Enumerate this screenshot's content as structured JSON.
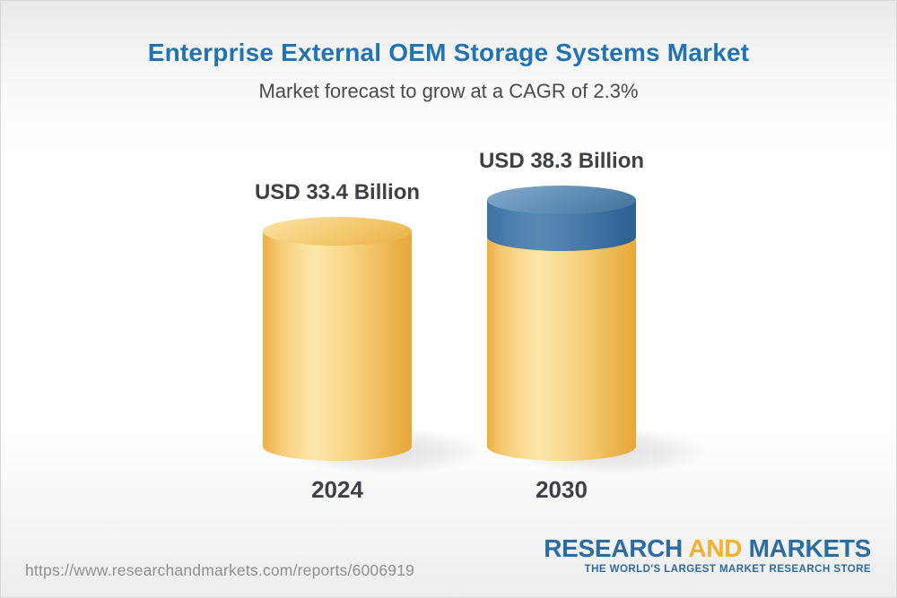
{
  "header": {
    "title": "Enterprise External OEM Storage Systems Market",
    "subtitle": "Market forecast to grow at a CAGR of 2.3%"
  },
  "chart": {
    "bars": [
      {
        "year": "2024",
        "value_label": "USD 33.4 Billion"
      },
      {
        "year": "2030",
        "value_label": "USD 38.3 Billion"
      }
    ]
  },
  "chart_data": {
    "type": "bar",
    "categories": [
      "2024",
      "2030"
    ],
    "values": [
      33.4,
      38.3
    ],
    "unit": "USD Billion",
    "title": "Enterprise External OEM Storage Systems Market",
    "subtitle": "Market forecast to grow at a CAGR of 2.3%",
    "cagr_percent": 2.3,
    "bar_style": "3d-cylinder",
    "annotations": [
      "USD 33.4 Billion",
      "USD 38.3 Billion"
    ],
    "colors": {
      "base_segment": "#f2c364",
      "growth_cap_segment": "#4a7cab"
    },
    "legend_position": "none",
    "grid": false
  },
  "icons": {
    "cylinder_base": "yellow-cylinder",
    "cylinder_growth_cap": "blue-cylinder-cap"
  },
  "footer": {
    "url": "https://www.researchandmarkets.com/reports/6006919",
    "logo": {
      "part1": "RESEARCH",
      "part2": "AND",
      "part3": "MARKETS",
      "tagline": "THE WORLD'S LARGEST MARKET RESEARCH STORE"
    }
  },
  "colors": {
    "title_blue": "#2273b2",
    "subtitle_gray": "#4a4a4a",
    "label_dark": "#3d4147",
    "url_gray": "#8f8f8f",
    "logo_blue": "#2d6ba3",
    "logo_yellow": "#f2b02e"
  }
}
